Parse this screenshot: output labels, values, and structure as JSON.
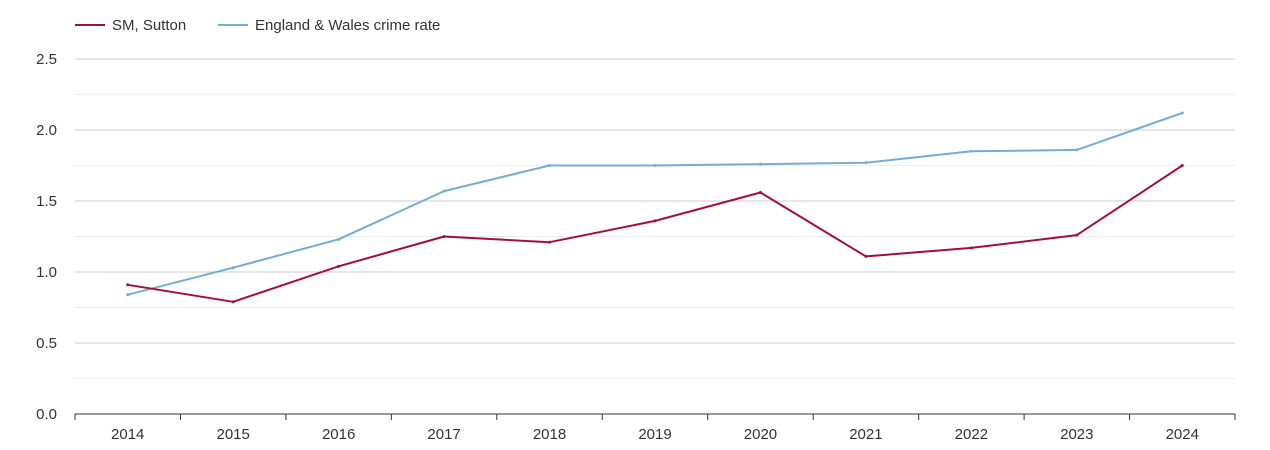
{
  "chart_data": {
    "type": "line",
    "title": "",
    "xlabel": "",
    "ylabel": "",
    "categories": [
      "2014",
      "2015",
      "2016",
      "2017",
      "2018",
      "2019",
      "2020",
      "2021",
      "2022",
      "2023",
      "2024"
    ],
    "yticks": [
      "0.0",
      "0.5",
      "1.0",
      "1.5",
      "2.0",
      "2.5"
    ],
    "ylim": [
      0,
      2.5
    ],
    "grid": true,
    "legend_position": "top-left",
    "series": [
      {
        "name": "SM, Sutton",
        "color": "#a50f36",
        "values": [
          0.91,
          0.79,
          1.04,
          1.25,
          1.21,
          1.36,
          1.56,
          1.11,
          1.17,
          1.26,
          1.75
        ]
      },
      {
        "name": "England & Wales crime rate",
        "color": "#74add1",
        "values": [
          0.84,
          1.03,
          1.23,
          1.57,
          1.75,
          1.75,
          1.76,
          1.77,
          1.85,
          1.86,
          2.12
        ]
      }
    ]
  }
}
